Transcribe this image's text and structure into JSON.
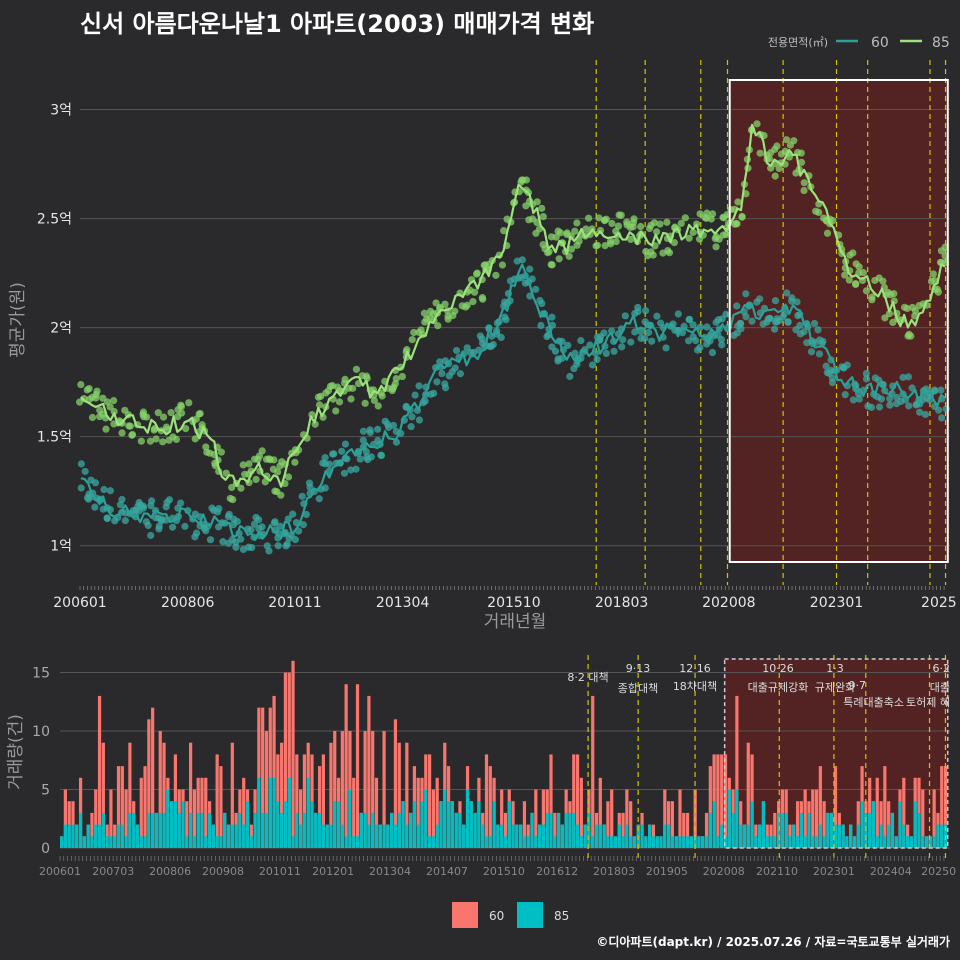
{
  "title": "신서 아름다운나날1 아파트(2003) 매매가격 변화",
  "footer": "©디아파트(dapt.kr) / 2025.07.26 / 자료=국토교통부 실거래가",
  "colors": {
    "s60_line": "#2aa198",
    "s60_point": "#3aa8a0",
    "s85_line": "#9be27c",
    "s85_point": "#86d16a",
    "bar60": "#f8766d",
    "bar85": "#00bfc4",
    "policy": "#d4c400",
    "grid": "#555555",
    "highlight_fill": "#5a2222",
    "highlight_box": "#ffffff"
  },
  "chart_data": [
    {
      "type": "line",
      "title": "신서 아름다운나날1 아파트(2003) 매매가격 변화",
      "xlabel": "거래년월",
      "ylabel": "평균가(원)",
      "x_ticks": [
        "200601",
        "200806",
        "201011",
        "201304",
        "201510",
        "201803",
        "202008",
        "202301",
        "2025"
      ],
      "y_ticks": [
        {
          "v": 1.0,
          "label": "1억"
        },
        {
          "v": 1.5,
          "label": "1.5억"
        },
        {
          "v": 2.0,
          "label": "2억"
        },
        {
          "v": 2.5,
          "label": "2.5억"
        },
        {
          "v": 3.0,
          "label": "3억"
        }
      ],
      "ylim": [
        0.82,
        3.25
      ],
      "xlim": [
        2006.0,
        2025.55
      ],
      "legend": {
        "title": "전용면적(㎡)",
        "position": "top-right",
        "items": [
          "60",
          "85"
        ]
      },
      "highlight_range": [
        2020.6,
        2025.5
      ],
      "policy_dates": [
        2017.6,
        2018.7,
        2019.95,
        2020.55,
        2021.8,
        2023.0,
        2023.7,
        2025.1,
        2025.45
      ],
      "series": [
        {
          "name": "60",
          "anchors": [
            [
              2006.0,
              1.3
            ],
            [
              2006.5,
              1.2
            ],
            [
              2007.0,
              1.15
            ],
            [
              2007.5,
              1.12
            ],
            [
              2008.0,
              1.15
            ],
            [
              2008.5,
              1.12
            ],
            [
              2009.0,
              1.1
            ],
            [
              2009.5,
              1.06
            ],
            [
              2010.0,
              1.05
            ],
            [
              2010.5,
              1.06
            ],
            [
              2010.9,
              1.1
            ],
            [
              2011.2,
              1.25
            ],
            [
              2011.6,
              1.35
            ],
            [
              2012.0,
              1.4
            ],
            [
              2012.5,
              1.48
            ],
            [
              2013.0,
              1.5
            ],
            [
              2013.5,
              1.62
            ],
            [
              2014.0,
              1.78
            ],
            [
              2014.5,
              1.84
            ],
            [
              2015.0,
              1.9
            ],
            [
              2015.5,
              2.05
            ],
            [
              2015.9,
              2.3
            ],
            [
              2016.3,
              2.1
            ],
            [
              2016.7,
              1.95
            ],
            [
              2017.0,
              1.85
            ],
            [
              2017.5,
              1.9
            ],
            [
              2018.0,
              1.95
            ],
            [
              2018.5,
              2.03
            ],
            [
              2019.0,
              1.97
            ],
            [
              2019.5,
              2.0
            ],
            [
              2020.0,
              1.95
            ],
            [
              2020.6,
              2.0
            ],
            [
              2021.0,
              2.1
            ],
            [
              2021.5,
              2.05
            ],
            [
              2022.0,
              2.1
            ],
            [
              2022.5,
              1.95
            ],
            [
              2023.0,
              1.8
            ],
            [
              2023.5,
              1.72
            ],
            [
              2024.0,
              1.7
            ],
            [
              2024.5,
              1.72
            ],
            [
              2025.0,
              1.68
            ],
            [
              2025.4,
              1.66
            ]
          ]
        },
        {
          "name": "85",
          "anchors": [
            [
              2006.0,
              1.7
            ],
            [
              2006.5,
              1.62
            ],
            [
              2007.0,
              1.58
            ],
            [
              2007.5,
              1.55
            ],
            [
              2008.0,
              1.55
            ],
            [
              2008.5,
              1.58
            ],
            [
              2009.0,
              1.45
            ],
            [
              2009.3,
              1.3
            ],
            [
              2009.6,
              1.28
            ],
            [
              2010.0,
              1.38
            ],
            [
              2010.5,
              1.3
            ],
            [
              2010.9,
              1.45
            ],
            [
              2011.3,
              1.6
            ],
            [
              2011.7,
              1.68
            ],
            [
              2012.2,
              1.75
            ],
            [
              2012.7,
              1.7
            ],
            [
              2013.2,
              1.8
            ],
            [
              2013.6,
              1.95
            ],
            [
              2014.0,
              2.05
            ],
            [
              2014.5,
              2.15
            ],
            [
              2015.0,
              2.2
            ],
            [
              2015.5,
              2.35
            ],
            [
              2015.9,
              2.65
            ],
            [
              2016.3,
              2.5
            ],
            [
              2016.6,
              2.35
            ],
            [
              2017.0,
              2.38
            ],
            [
              2017.5,
              2.45
            ],
            [
              2018.0,
              2.45
            ],
            [
              2018.5,
              2.42
            ],
            [
              2019.0,
              2.4
            ],
            [
              2019.5,
              2.42
            ],
            [
              2020.0,
              2.45
            ],
            [
              2020.5,
              2.45
            ],
            [
              2020.9,
              2.58
            ],
            [
              2021.1,
              2.95
            ],
            [
              2021.5,
              2.75
            ],
            [
              2022.0,
              2.8
            ],
            [
              2022.5,
              2.6
            ],
            [
              2022.8,
              2.5
            ],
            [
              2023.2,
              2.3
            ],
            [
              2023.6,
              2.22
            ],
            [
              2024.0,
              2.15
            ],
            [
              2024.4,
              2.05
            ],
            [
              2024.8,
              2.0
            ],
            [
              2025.1,
              2.15
            ],
            [
              2025.4,
              2.3
            ]
          ]
        }
      ]
    },
    {
      "type": "bar",
      "ylabel": "거래량(건)",
      "x_ticks": [
        "200601",
        "200703",
        "200806",
        "200908",
        "201011",
        "201201",
        "201304",
        "201407",
        "201510",
        "201612",
        "201803",
        "201905",
        "202008",
        "202110",
        "202301",
        "202404",
        "20250"
      ],
      "y_ticks": [
        0,
        5,
        10,
        15
      ],
      "ylim": [
        0,
        16.5
      ],
      "legend": {
        "position": "bottom",
        "items": [
          "60",
          "85"
        ]
      },
      "policy_annotations": [
        {
          "date": "8·2",
          "label": "대책",
          "x": 2017.6
        },
        {
          "date": "9·13",
          "label": "종합대책",
          "x": 2018.7
        },
        {
          "date": "12·16",
          "label": "18차대책",
          "x": 2019.95
        },
        {
          "date": "10·26",
          "label": "대출규제강화",
          "x": 2021.8
        },
        {
          "date": "1·3",
          "label": "규제완화",
          "x": 2023.0
        },
        {
          "date": "9·7",
          "label": "특례대출축소",
          "x": 2023.7
        },
        {
          "date": "",
          "label": "토허제 해",
          "x": 2025.1
        },
        {
          "date": "6·2",
          "label": "대출",
          "x": 2025.45
        }
      ],
      "series": [
        {
          "name": "60",
          "note": "total bar heights",
          "profile": [
            [
              2006.0,
              3
            ],
            [
              2007.0,
              6
            ],
            [
              2008.0,
              7
            ],
            [
              2009.0,
              5
            ],
            [
              2010.0,
              6
            ],
            [
              2010.9,
              11
            ],
            [
              2011.5,
              7
            ],
            [
              2012.0,
              6
            ],
            [
              2013.0,
              7
            ],
            [
              2014.0,
              6
            ],
            [
              2015.0,
              6
            ],
            [
              2016.0,
              4
            ],
            [
              2017.0,
              3
            ],
            [
              2017.6,
              9
            ],
            [
              2018.0,
              3
            ],
            [
              2019.0,
              3
            ],
            [
              2020.0,
              3
            ],
            [
              2020.7,
              7
            ],
            [
              2021.5,
              4
            ],
            [
              2022.0,
              4
            ],
            [
              2023.0,
              4
            ],
            [
              2024.0,
              4
            ],
            [
              2025.0,
              4
            ]
          ]
        },
        {
          "name": "85",
          "profile": [
            [
              2006.0,
              2
            ],
            [
              2007.0,
              2
            ],
            [
              2008.0,
              3
            ],
            [
              2009.0,
              2
            ],
            [
              2010.0,
              3
            ],
            [
              2011.0,
              4
            ],
            [
              2012.0,
              3
            ],
            [
              2013.0,
              4
            ],
            [
              2014.0,
              3
            ],
            [
              2015.0,
              3
            ],
            [
              2016.0,
              2
            ],
            [
              2017.0,
              2
            ],
            [
              2018.0,
              2
            ],
            [
              2019.0,
              1
            ],
            [
              2020.0,
              1
            ],
            [
              2020.7,
              4
            ],
            [
              2021.5,
              2
            ],
            [
              2022.0,
              2
            ],
            [
              2023.0,
              2
            ],
            [
              2024.0,
              2
            ],
            [
              2025.0,
              2
            ]
          ]
        }
      ]
    }
  ]
}
